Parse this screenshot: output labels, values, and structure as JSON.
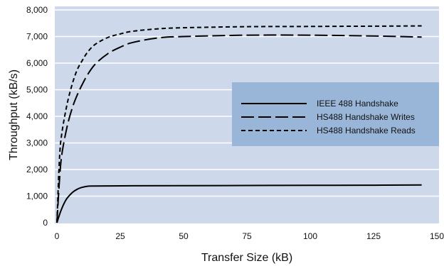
{
  "chart_data": {
    "type": "line",
    "xlabel": "Transfer Size (kB)",
    "ylabel": "Throughput (kB/s)",
    "xlim": [
      0,
      150
    ],
    "ylim": [
      0,
      8000
    ],
    "x_ticks": [
      "0",
      "25",
      "50",
      "75",
      "100",
      "125",
      "150"
    ],
    "y_ticks": [
      "0",
      "1,000",
      "2,000",
      "3,000",
      "4,000",
      "5,000",
      "6,000",
      "7,000",
      "8,000"
    ],
    "grid": "horizontal",
    "legend_position": "right-middle",
    "colors": {
      "plot_background": "#cdd9ea",
      "legend_background": "#99b6d9",
      "gridline": "#ffffff",
      "line": "#000000"
    },
    "series": [
      {
        "name": "IEEE 488 Handshake",
        "dash": "solid",
        "x": [
          0,
          1,
          2,
          3,
          4,
          6,
          8,
          10,
          12,
          14,
          20,
          30,
          50,
          75,
          100,
          125,
          144
        ],
        "y": [
          0,
          300,
          550,
          760,
          920,
          1130,
          1260,
          1330,
          1370,
          1380,
          1385,
          1390,
          1395,
          1400,
          1405,
          1410,
          1420
        ]
      },
      {
        "name": "HS488 Handshake Writes",
        "dash": "long-dash",
        "x": [
          0,
          1,
          2,
          4,
          6,
          8,
          10,
          12,
          15,
          20,
          25,
          30,
          40,
          50,
          75,
          100,
          125,
          144
        ],
        "y": [
          0,
          1600,
          2600,
          3600,
          4300,
          4800,
          5200,
          5550,
          5950,
          6350,
          6600,
          6780,
          6950,
          7000,
          7050,
          7050,
          7020,
          6980
        ]
      },
      {
        "name": "HS488 Handshake Reads",
        "dash": "short-dash",
        "x": [
          0,
          1,
          2,
          4,
          6,
          8,
          10,
          12,
          15,
          20,
          25,
          30,
          40,
          50,
          75,
          100,
          125,
          144
        ],
        "y": [
          0,
          2400,
          3400,
          4450,
          5200,
          5750,
          6100,
          6400,
          6700,
          6960,
          7100,
          7200,
          7290,
          7330,
          7370,
          7380,
          7390,
          7400
        ]
      }
    ]
  }
}
